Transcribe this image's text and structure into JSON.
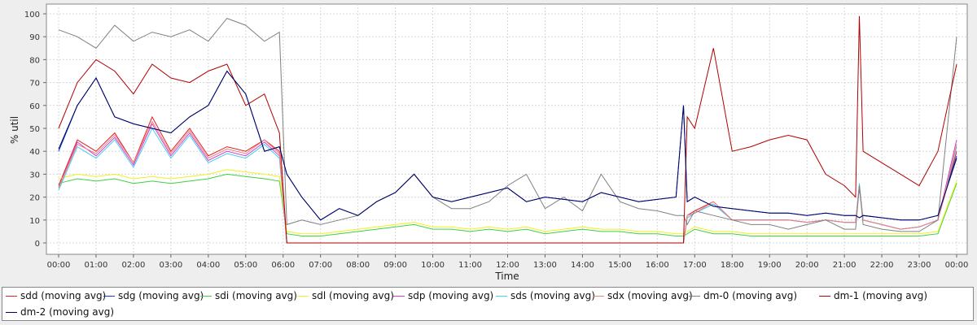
{
  "chart_data": {
    "type": "line",
    "xlabel": "Time",
    "ylabel": "% util",
    "ylim": [
      0,
      100
    ],
    "yticks": [
      0,
      10,
      20,
      30,
      40,
      50,
      60,
      70,
      80,
      90,
      100
    ],
    "xticks": [
      "00:00",
      "01:00",
      "02:00",
      "03:00",
      "04:00",
      "05:00",
      "06:00",
      "07:00",
      "08:00",
      "09:00",
      "10:00",
      "11:00",
      "12:00",
      "13:00",
      "14:00",
      "15:00",
      "16:00",
      "17:00",
      "18:00",
      "19:00",
      "20:00",
      "21:00",
      "22:00",
      "23:00",
      "00:00"
    ],
    "grid": true,
    "legend_position": "bottom",
    "x_hours": [
      0,
      0.5,
      1,
      1.5,
      2,
      2.5,
      3,
      3.5,
      4,
      4.5,
      5,
      5.5,
      5.9,
      6.1,
      6.5,
      7,
      7.5,
      8,
      8.5,
      9,
      9.5,
      10,
      10.5,
      11,
      11.5,
      12,
      12.5,
      13,
      13.5,
      14,
      14.5,
      15,
      15.5,
      16,
      16.5,
      16.7,
      16.8,
      17,
      17.5,
      18,
      18.5,
      19,
      19.5,
      20,
      20.5,
      21,
      21.3,
      21.4,
      21.5,
      22,
      22.5,
      23,
      23.5,
      24
    ],
    "series": [
      {
        "name": "sdd (moving avg)",
        "color": "#e02020",
        "values": [
          25,
          45,
          40,
          48,
          35,
          55,
          40,
          50,
          38,
          42,
          40,
          45,
          40,
          0,
          0,
          0,
          0,
          0,
          0,
          0,
          0,
          0,
          0,
          0,
          0,
          0,
          0,
          0,
          0,
          0,
          0,
          0,
          0,
          0,
          0,
          0,
          12,
          14,
          18,
          10,
          10,
          10,
          10,
          9,
          10,
          9,
          9,
          25,
          10,
          8,
          6,
          7,
          10,
          40
        ]
      },
      {
        "name": "sdg (moving avg)",
        "color": "#1040d0",
        "values": [
          40,
          60,
          72,
          55,
          52,
          50,
          48,
          55,
          60,
          75,
          65,
          40,
          42,
          30,
          20,
          10,
          15,
          12,
          18,
          22,
          30,
          20,
          18,
          20,
          22,
          24,
          18,
          20,
          19,
          18,
          22,
          20,
          18,
          19,
          20,
          60,
          18,
          20,
          16,
          15,
          14,
          13,
          13,
          12,
          13,
          12,
          12,
          11,
          12,
          11,
          10,
          10,
          12,
          38
        ]
      },
      {
        "name": "sdi (moving avg)",
        "color": "#40d040",
        "values": [
          26,
          28,
          27,
          28,
          26,
          27,
          26,
          27,
          28,
          30,
          29,
          28,
          27,
          4,
          3,
          3,
          4,
          5,
          6,
          7,
          8,
          6,
          6,
          5,
          6,
          5,
          6,
          4,
          5,
          6,
          5,
          5,
          4,
          4,
          3,
          3,
          4,
          6,
          4,
          4,
          3,
          3,
          3,
          3,
          3,
          3,
          3,
          3,
          3,
          3,
          3,
          3,
          4,
          26
        ]
      },
      {
        "name": "sdl (moving avg)",
        "color": "#f0f020",
        "values": [
          28,
          30,
          29,
          30,
          28,
          29,
          28,
          29,
          30,
          32,
          31,
          30,
          29,
          5,
          4,
          4,
          5,
          6,
          7,
          8,
          9,
          7,
          7,
          6,
          7,
          6,
          7,
          5,
          6,
          7,
          6,
          6,
          5,
          5,
          4,
          4,
          5,
          7,
          5,
          5,
          4,
          4,
          4,
          4,
          4,
          4,
          4,
          4,
          4,
          4,
          4,
          4,
          5,
          27
        ]
      },
      {
        "name": "sdp (moving avg)",
        "color": "#d040d0",
        "values": [
          24,
          44,
          38,
          46,
          34,
          52,
          38,
          48,
          36,
          40,
          38,
          44,
          38,
          0,
          0,
          0,
          0,
          0,
          0,
          0,
          0,
          0,
          0,
          0,
          0,
          0,
          0,
          0,
          0,
          0,
          0,
          0,
          0,
          0,
          0,
          0,
          11,
          13,
          17,
          10,
          10,
          10,
          10,
          9,
          10,
          9,
          9,
          24,
          10,
          8,
          6,
          7,
          10,
          45
        ]
      },
      {
        "name": "sds (moving avg)",
        "color": "#40d0f0",
        "values": [
          23,
          42,
          37,
          45,
          33,
          50,
          37,
          47,
          35,
          39,
          37,
          43,
          37,
          0,
          0,
          0,
          0,
          0,
          0,
          0,
          0,
          0,
          0,
          0,
          0,
          0,
          0,
          0,
          0,
          0,
          0,
          0,
          0,
          0,
          0,
          0,
          11,
          13,
          17,
          10,
          10,
          10,
          10,
          9,
          10,
          9,
          9,
          26,
          10,
          8,
          6,
          7,
          10,
          42
        ]
      },
      {
        "name": "sdx (moving avg)",
        "color": "#f08080",
        "values": [
          24,
          43,
          39,
          47,
          35,
          53,
          39,
          49,
          37,
          41,
          39,
          45,
          39,
          0,
          0,
          0,
          0,
          0,
          0,
          0,
          0,
          0,
          0,
          0,
          0,
          0,
          0,
          0,
          0,
          0,
          0,
          0,
          0,
          0,
          0,
          0,
          12,
          13,
          18,
          10,
          10,
          10,
          10,
          9,
          10,
          9,
          9,
          25,
          10,
          8,
          6,
          7,
          10,
          43
        ]
      },
      {
        "name": "dm-0 (moving avg)",
        "color": "#808080",
        "values": [
          93,
          90,
          85,
          95,
          88,
          92,
          90,
          93,
          88,
          98,
          95,
          88,
          92,
          8,
          10,
          8,
          10,
          12,
          18,
          22,
          30,
          20,
          15,
          15,
          18,
          25,
          30,
          15,
          20,
          14,
          30,
          18,
          15,
          14,
          12,
          12,
          8,
          14,
          12,
          10,
          8,
          8,
          6,
          8,
          10,
          6,
          6,
          25,
          8,
          6,
          5,
          5,
          10,
          90
        ]
      },
      {
        "name": "dm-1 (moving avg)",
        "color": "#b00000",
        "values": [
          50,
          70,
          80,
          75,
          65,
          78,
          72,
          70,
          75,
          78,
          60,
          65,
          48,
          0,
          0,
          0,
          0,
          0,
          0,
          0,
          0,
          0,
          0,
          0,
          0,
          0,
          0,
          0,
          0,
          0,
          0,
          0,
          0,
          0,
          0,
          0,
          55,
          50,
          85,
          40,
          42,
          45,
          47,
          45,
          30,
          25,
          20,
          99,
          40,
          35,
          30,
          25,
          40,
          78
        ]
      },
      {
        "name": "dm-2 (moving avg)",
        "color": "#000060",
        "values": [
          41,
          60,
          72,
          55,
          52,
          50,
          48,
          55,
          60,
          75,
          65,
          40,
          42,
          30,
          20,
          10,
          15,
          12,
          18,
          22,
          30,
          20,
          18,
          20,
          22,
          24,
          18,
          20,
          19,
          18,
          22,
          20,
          18,
          19,
          20,
          60,
          18,
          20,
          16,
          15,
          14,
          13,
          13,
          12,
          13,
          12,
          12,
          11,
          12,
          11,
          10,
          10,
          12,
          37
        ]
      }
    ]
  }
}
